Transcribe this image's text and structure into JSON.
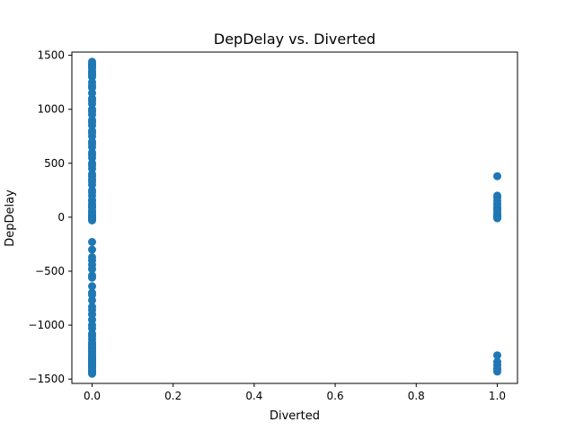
{
  "chart_data": {
    "type": "scatter",
    "title": "DepDelay vs. Diverted",
    "xlabel": "Diverted",
    "ylabel": "DepDelay",
    "xlim": [
      -0.05,
      1.05
    ],
    "ylim": [
      -1540,
      1530
    ],
    "xticks": [
      0.0,
      0.2,
      0.4,
      0.6,
      0.8,
      1.0
    ],
    "xtick_labels": [
      "0.0",
      "0.2",
      "0.4",
      "0.6",
      "0.8",
      "1.0"
    ],
    "yticks": [
      -1500,
      -1000,
      -500,
      0,
      500,
      1000,
      1500
    ],
    "ytick_labels": [
      "−1500",
      "−1000",
      "−500",
      "0",
      "500",
      "1000",
      "1500"
    ],
    "grid": false,
    "color": "#1f77b4",
    "series": [
      {
        "x": [
          0,
          0,
          0,
          0,
          0,
          0,
          0,
          0,
          0,
          0,
          0,
          0,
          0,
          0,
          0,
          0,
          0,
          0,
          0,
          0,
          0,
          0,
          0,
          0,
          0,
          0,
          0,
          0,
          0,
          0,
          0,
          0,
          0,
          0,
          0,
          0,
          0,
          0,
          0,
          0,
          0,
          0,
          0,
          0,
          0,
          0,
          0,
          0,
          0,
          0,
          0,
          0,
          0,
          0,
          0,
          0,
          0,
          0,
          0,
          0,
          0,
          0,
          0,
          0,
          0,
          0,
          0,
          0,
          0,
          0,
          0,
          0,
          0,
          0,
          0,
          0,
          0,
          0,
          0,
          0,
          0,
          0,
          0,
          0,
          0,
          0,
          0,
          0,
          0,
          0,
          0,
          0,
          0,
          0,
          0,
          0,
          0,
          0,
          0,
          0,
          0,
          0,
          0,
          0,
          1,
          1,
          1,
          1,
          1,
          1,
          1,
          1,
          1,
          1,
          1,
          1,
          1,
          1,
          1,
          1,
          1,
          1,
          1,
          1
        ],
        "y": [
          1440,
          1420,
          1400,
          1380,
          1350,
          1320,
          1300,
          1250,
          1200,
          1150,
          1100,
          1050,
          1000,
          950,
          900,
          850,
          800,
          750,
          700,
          650,
          600,
          550,
          500,
          450,
          400,
          350,
          300,
          250,
          200,
          150,
          120,
          90,
          60,
          40,
          20,
          10,
          0,
          -10,
          -20,
          -30,
          -230,
          -300,
          -370,
          -400,
          -440,
          -480,
          -540,
          -640,
          -700,
          -770,
          -830,
          -900,
          -950,
          -1000,
          -1030,
          -1080,
          -1100,
          -1130,
          -1160,
          -1180,
          -1200,
          -1220,
          -1240,
          -1260,
          -1280,
          -1300,
          -1320,
          -1340,
          -1360,
          -1380,
          -1400,
          -1420,
          -1440,
          -1450,
          1400,
          1330,
          1220,
          1080,
          980,
          880,
          780,
          680,
          580,
          480,
          380,
          330,
          230,
          160,
          100,
          50,
          5,
          -15,
          -560,
          -720,
          -860,
          -1240,
          -1210,
          -1290,
          -1310,
          -1330,
          -1350,
          -1370,
          -1390,
          -1430,
          380,
          200,
          180,
          150,
          120,
          90,
          70,
          50,
          30,
          15,
          5,
          0,
          -5,
          -10,
          -1280,
          -1340,
          -1370,
          -1400,
          -1430,
          -1410
        ]
      }
    ]
  }
}
